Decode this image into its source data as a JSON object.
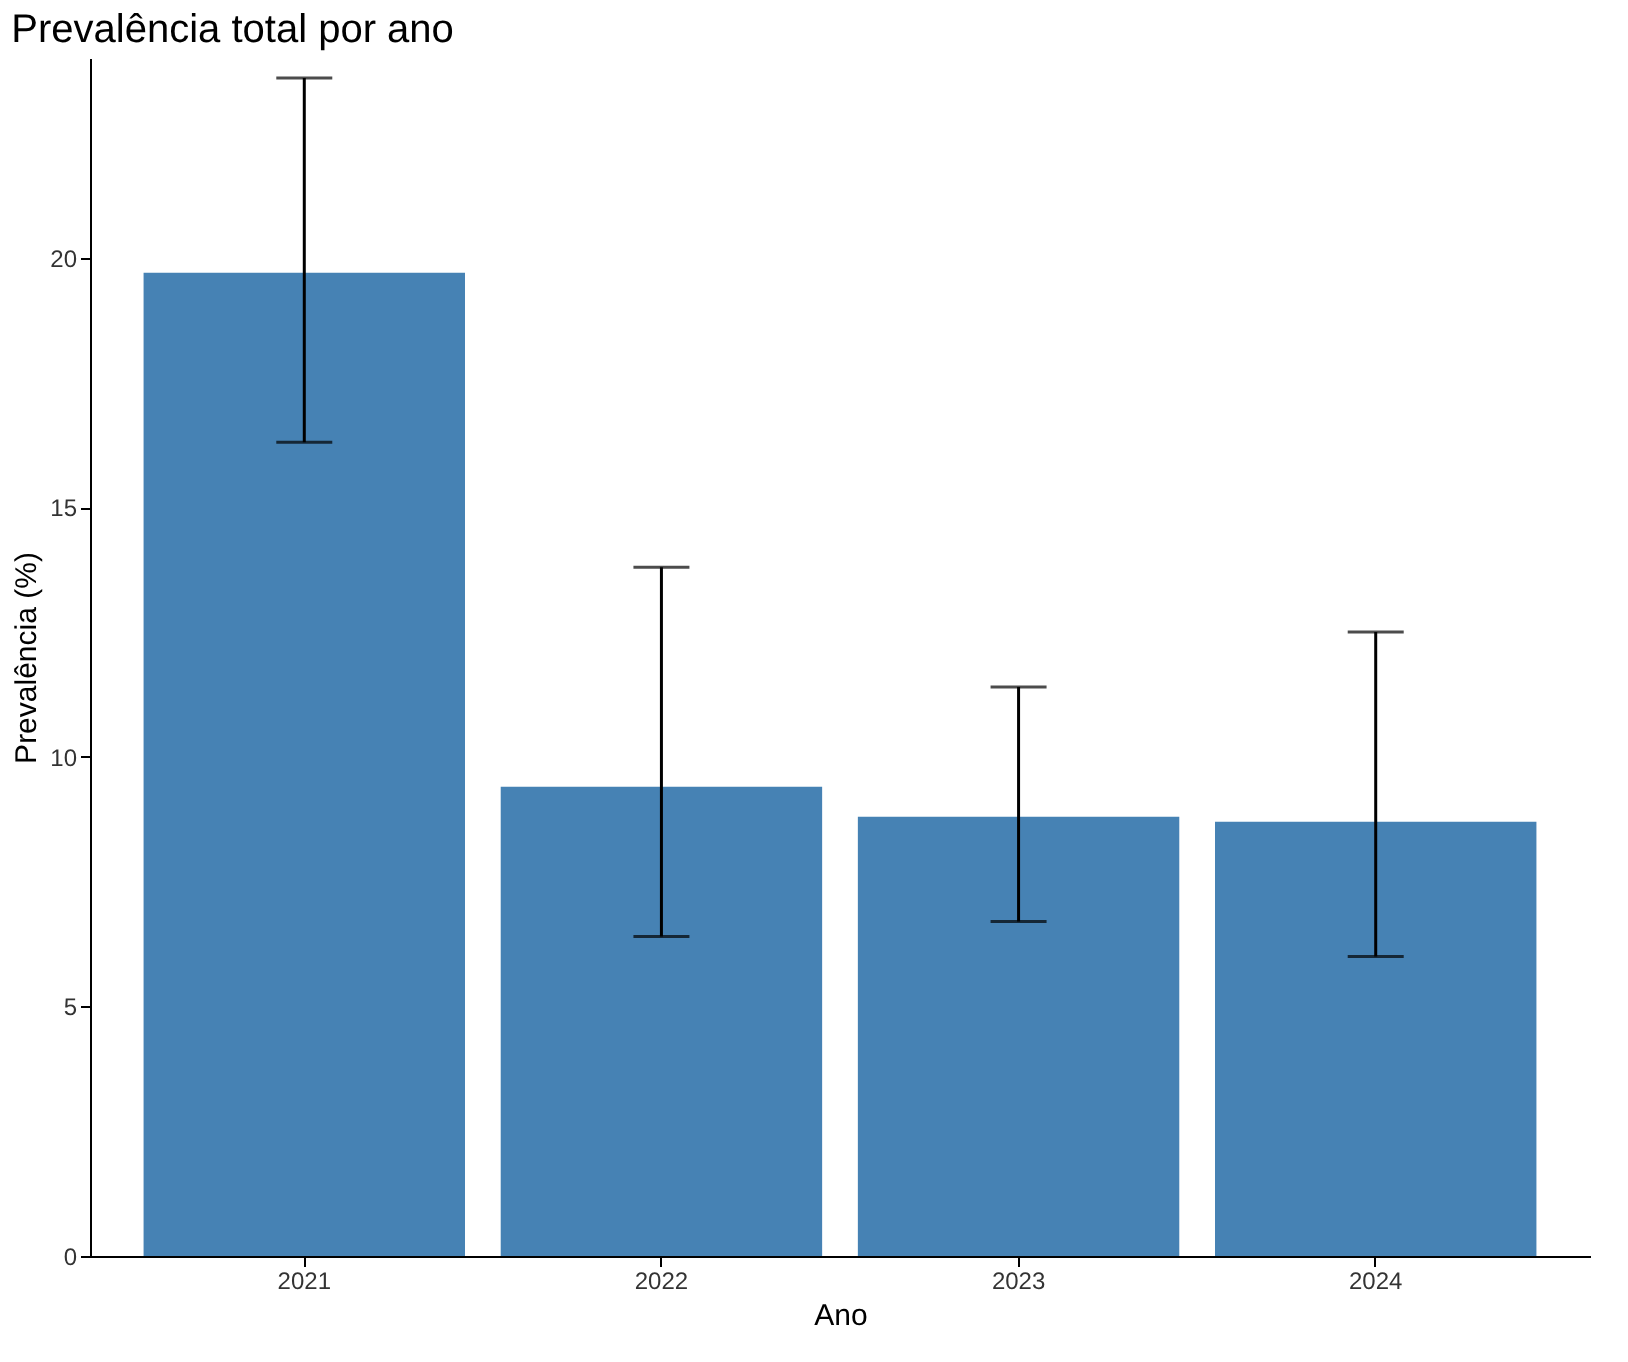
{
  "chart_data": {
    "type": "bar",
    "title": "Prevalência total por ano",
    "xlabel": "Ano",
    "ylabel": "Prevalência (%)",
    "categories": [
      "2021",
      "2022",
      "2023",
      "2024"
    ],
    "values": [
      19.7,
      9.4,
      8.8,
      8.7
    ],
    "errors": [
      [
        16.3,
        23.6
      ],
      [
        6.4,
        13.8
      ],
      [
        6.7,
        11.4
      ],
      [
        6.0,
        12.5
      ]
    ],
    "color": "#4682b4",
    "ylim": [
      0,
      24
    ],
    "yticks": [
      0,
      5,
      10,
      15,
      20
    ],
    "grid": false
  }
}
